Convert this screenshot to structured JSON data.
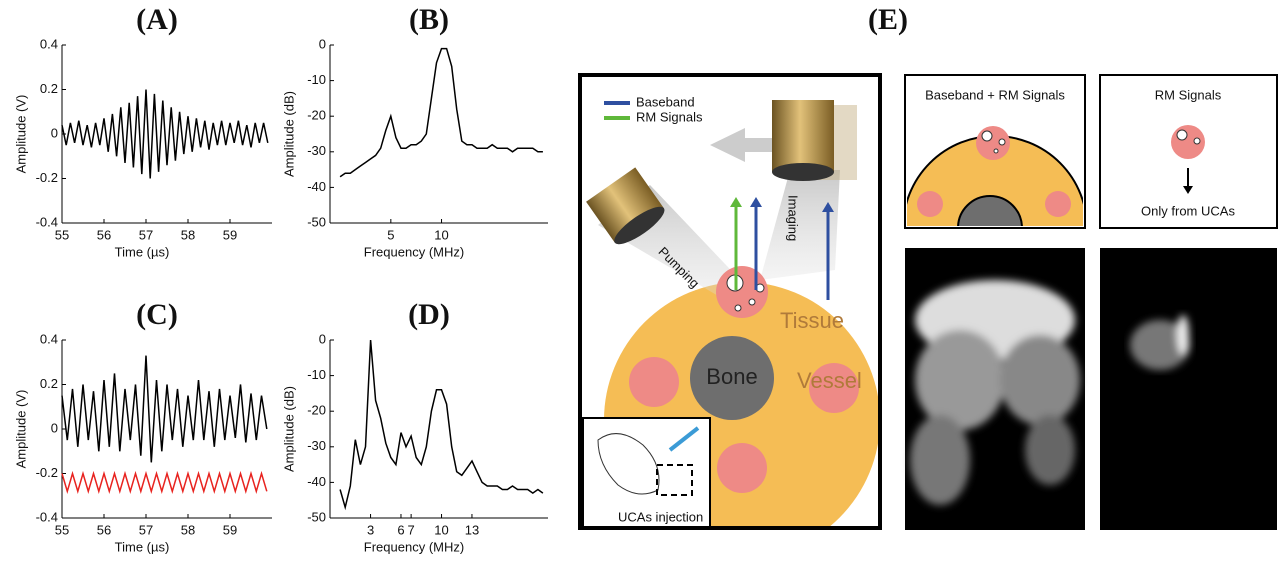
{
  "chart_data": [
    {
      "type": "line",
      "title": "(A)",
      "x_label": "Time (µs)",
      "y_label": "Amplitude (V)",
      "x": [
        55.0,
        55.1,
        55.2,
        55.3,
        55.4,
        55.5,
        55.6,
        55.7,
        55.8,
        55.9,
        56.0,
        56.1,
        56.2,
        56.3,
        56.4,
        56.5,
        56.6,
        56.7,
        56.8,
        56.9,
        57.0,
        57.1,
        57.2,
        57.3,
        57.4,
        57.5,
        57.6,
        57.7,
        57.8,
        57.9,
        58.0,
        58.1,
        58.2,
        58.3,
        58.4,
        58.5,
        58.6,
        58.7,
        58.8,
        58.9,
        59.0,
        59.1,
        59.2,
        59.3,
        59.4,
        59.5,
        59.6,
        59.7,
        59.8,
        59.9
      ],
      "series": [
        {
          "color": "#000000",
          "values": [
            0.04,
            -0.05,
            0.05,
            -0.04,
            0.06,
            -0.05,
            0.04,
            -0.06,
            0.05,
            -0.05,
            0.07,
            -0.08,
            0.09,
            -0.1,
            0.12,
            -0.13,
            0.14,
            -0.15,
            0.17,
            -0.18,
            0.2,
            -0.2,
            0.18,
            -0.17,
            0.15,
            -0.14,
            0.12,
            -0.12,
            0.1,
            -0.09,
            0.08,
            -0.08,
            0.07,
            -0.06,
            0.06,
            -0.07,
            0.05,
            -0.05,
            0.06,
            -0.05,
            0.05,
            -0.04,
            0.06,
            -0.05,
            0.04,
            -0.06,
            0.05,
            -0.04,
            0.05,
            -0.04
          ]
        }
      ],
      "xlim": [
        55,
        60
      ],
      "xticks": [
        55,
        56,
        57,
        58,
        59
      ],
      "ylim": [
        -0.4,
        0.4
      ],
      "yticks": [
        0.4,
        0.2,
        0,
        -0.2,
        -0.4
      ]
    },
    {
      "type": "line",
      "title": "(B)",
      "x_label": "Frequency (MHz)",
      "y_label": "Amplitude (dB)",
      "x": [
        0,
        0.5,
        1,
        1.5,
        2,
        2.5,
        3,
        3.5,
        4,
        4.5,
        5,
        5.5,
        6,
        6.5,
        7,
        7.5,
        8,
        8.5,
        9,
        9.5,
        10,
        10.5,
        11,
        11.5,
        12,
        12.5,
        13,
        13.5,
        14,
        14.5,
        15,
        15.5,
        16,
        16.5,
        17,
        17.5,
        18,
        18.5,
        19,
        19.5,
        20
      ],
      "series": [
        {
          "color": "#000000",
          "values": [
            -37,
            -36,
            -36,
            -35,
            -34,
            -33,
            -32,
            -31,
            -29,
            -24,
            -20,
            -26,
            -29,
            -29,
            -28,
            -28,
            -27,
            -25,
            -15,
            -5,
            -1,
            -1,
            -6,
            -18,
            -27,
            -28,
            -28,
            -29,
            -29,
            -29,
            -28,
            -29,
            -29,
            -29,
            -30,
            -29,
            -29,
            -29,
            -29,
            -30,
            -30
          ]
        }
      ],
      "xlim": [
        -1,
        20.5
      ],
      "xticks": [
        5,
        10
      ],
      "ylim": [
        -50,
        0
      ],
      "yticks": [
        0,
        -10,
        -20,
        -30,
        -40,
        -50
      ]
    },
    {
      "type": "line",
      "title": "(C)",
      "x_label": "Time (µs)",
      "y_label": "Amplitude (V)",
      "x": [
        55,
        55.125,
        55.25,
        55.375,
        55.5,
        55.625,
        55.75,
        55.875,
        56,
        56.125,
        56.25,
        56.375,
        56.5,
        56.625,
        56.75,
        56.875,
        57,
        57.125,
        57.25,
        57.375,
        57.5,
        57.625,
        57.75,
        57.875,
        58,
        58.125,
        58.25,
        58.375,
        58.5,
        58.625,
        58.75,
        58.875,
        59,
        59.125,
        59.25,
        59.375,
        59.5,
        59.625,
        59.75,
        59.875
      ],
      "series": [
        {
          "color": "#000000",
          "values": [
            0.15,
            -0.05,
            0.18,
            -0.08,
            0.2,
            -0.05,
            0.17,
            -0.1,
            0.22,
            -0.08,
            0.25,
            -0.1,
            0.18,
            -0.05,
            0.2,
            -0.12,
            0.33,
            -0.15,
            0.22,
            -0.1,
            0.2,
            -0.05,
            0.18,
            -0.08,
            0.15,
            -0.05,
            0.22,
            -0.05,
            0.17,
            -0.08,
            0.18,
            -0.05,
            0.15,
            -0.04,
            0.2,
            -0.06,
            0.16,
            -0.05,
            0.15,
            0.0
          ]
        },
        {
          "color": "#e8231f",
          "values": [
            -0.2,
            -0.28,
            -0.2,
            -0.28,
            -0.2,
            -0.28,
            -0.2,
            -0.28,
            -0.2,
            -0.28,
            -0.2,
            -0.28,
            -0.2,
            -0.28,
            -0.2,
            -0.28,
            -0.2,
            -0.28,
            -0.2,
            -0.28,
            -0.2,
            -0.28,
            -0.2,
            -0.28,
            -0.2,
            -0.28,
            -0.2,
            -0.28,
            -0.2,
            -0.28,
            -0.2,
            -0.28,
            -0.2,
            -0.28,
            -0.2,
            -0.28,
            -0.2,
            -0.28,
            -0.2,
            -0.28
          ]
        }
      ],
      "xlim": [
        55,
        60
      ],
      "xticks": [
        55,
        56,
        57,
        58,
        59
      ],
      "ylim": [
        -0.4,
        0.4
      ],
      "yticks": [
        0.4,
        0.2,
        0,
        -0.2,
        -0.4
      ]
    },
    {
      "type": "line",
      "title": "(D)",
      "x_label": "Frequency (MHz)",
      "y_label": "Amplitude (dB)",
      "x": [
        0,
        0.5,
        1,
        1.5,
        2,
        2.5,
        3,
        3.5,
        4,
        4.5,
        5,
        5.5,
        6,
        6.5,
        7,
        7.5,
        8,
        8.5,
        9,
        9.5,
        10,
        10.5,
        11,
        11.5,
        12,
        12.5,
        13,
        13.5,
        14,
        14.5,
        15,
        15.5,
        16,
        16.5,
        17,
        17.5,
        18,
        18.5,
        19,
        19.5,
        20
      ],
      "series": [
        {
          "color": "#000000",
          "values": [
            -42,
            -47,
            -41,
            -28,
            -35,
            -30,
            0,
            -17,
            -22,
            -29,
            -33,
            -35,
            -26,
            -30,
            -27,
            -33,
            -35,
            -30,
            -20,
            -14,
            -14,
            -18,
            -30,
            -37,
            -38,
            -36,
            -34,
            -37,
            -40,
            -41,
            -41,
            -41,
            -42,
            -42,
            -41,
            -42,
            -42,
            -42,
            -43,
            -42,
            -43
          ]
        }
      ],
      "xlim": [
        -1,
        20.5
      ],
      "xticks": [
        3,
        6,
        7,
        10,
        13
      ],
      "ylim": [
        -50,
        0
      ],
      "yticks": [
        0,
        -10,
        -20,
        -30,
        -40,
        -50
      ]
    }
  ],
  "diagram": {
    "title": "(E)",
    "legend": [
      {
        "label": "Baseband",
        "color": "#2e4fa0"
      },
      {
        "label": "RM Signals",
        "color": "#5fb83a"
      }
    ],
    "pumping": "Pumping",
    "imaging": "Imaging",
    "tissue": "Tissue",
    "bone": "Bone",
    "vessel": "Vessel",
    "injection": "UCAs injection",
    "panel_left": "Baseband + RM Signals",
    "panel_right": "RM Signals",
    "note": "Only from UCAs"
  }
}
